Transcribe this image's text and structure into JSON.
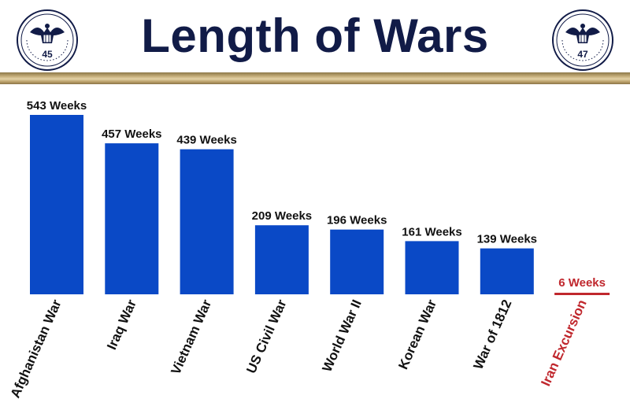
{
  "header": {
    "title": "Length of Wars",
    "seal_text_left": "45",
    "seal_text_right": "47"
  },
  "colors": {
    "title": "#111b47",
    "bar": "#0a49c6",
    "text": "#111111",
    "highlight": "#c0272d",
    "gold": "#c7b07d"
  },
  "icons": {
    "seal": "presidential-eagle-seal-icon"
  },
  "chart_data": {
    "type": "bar",
    "title": "Length of Wars",
    "xlabel": "",
    "ylabel": "",
    "ylim": [
      0,
      543
    ],
    "grid": false,
    "legend": "none",
    "categories": [
      "Afghanistan War",
      "Iraq War",
      "Vietnam War",
      "US Civil War",
      "World War II",
      "Korean War",
      "War of 1812",
      "Iran Excursion"
    ],
    "values": [
      543,
      457,
      439,
      209,
      196,
      161,
      139,
      6
    ],
    "labels": [
      "543 Weeks",
      "457 Weeks",
      "439 Weeks",
      "209 Weeks",
      "196 Weeks",
      "161 Weeks",
      "139 Weeks",
      "6 Weeks"
    ],
    "highlight_index": 7
  }
}
